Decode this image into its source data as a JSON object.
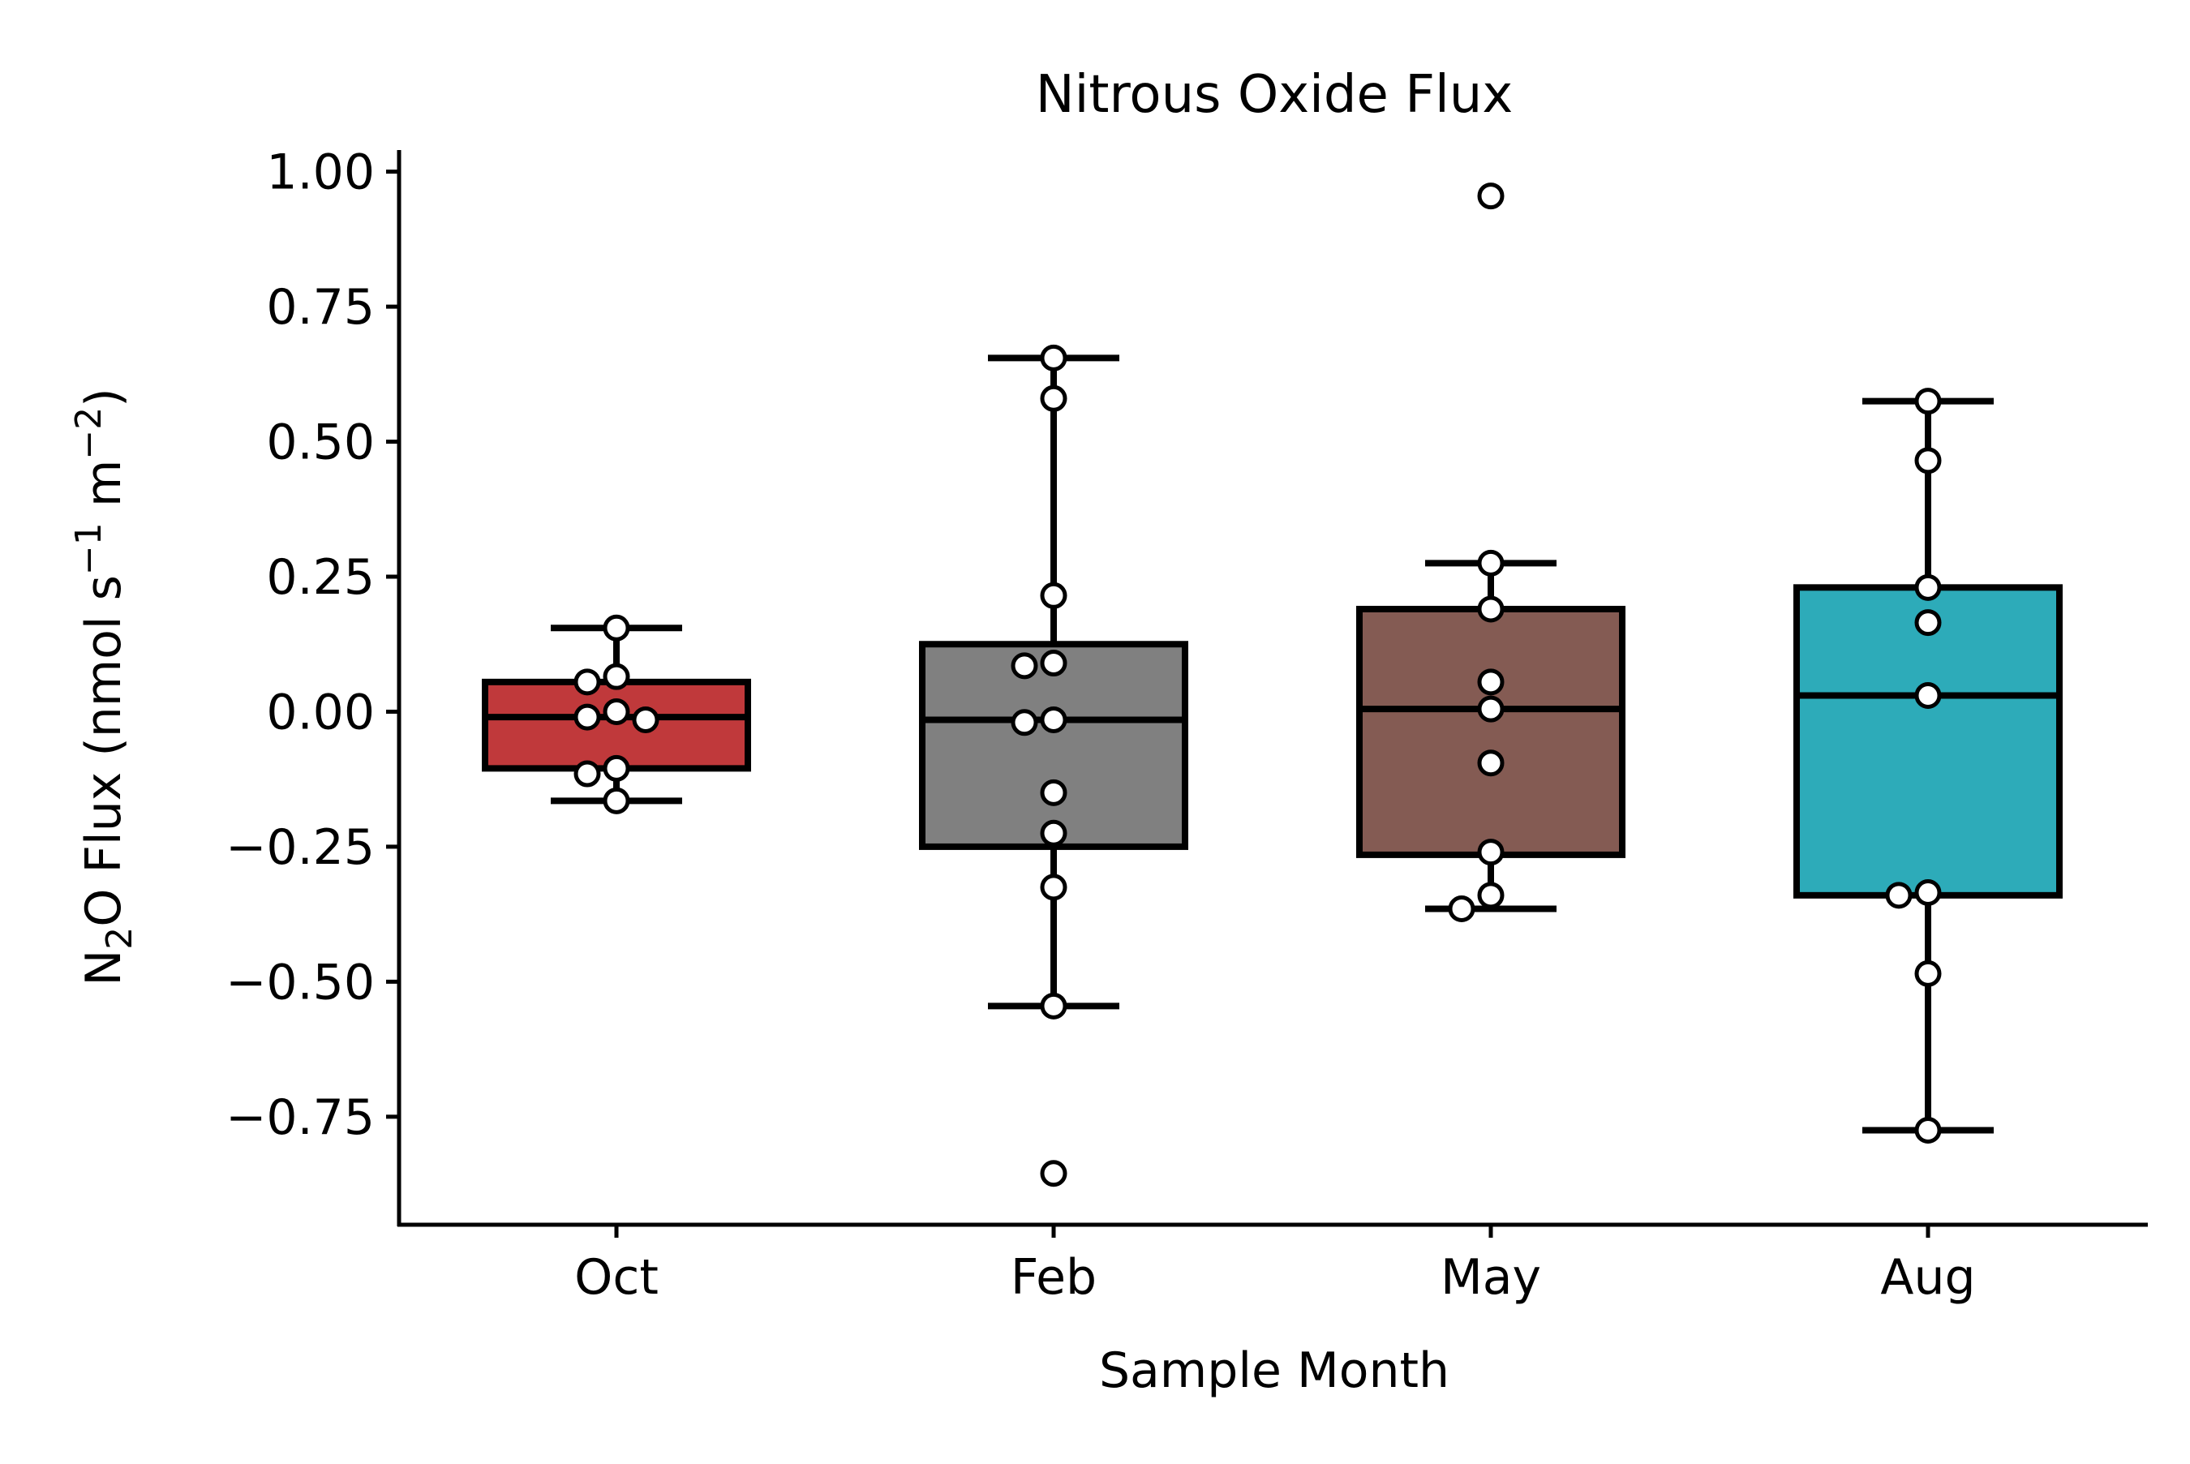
{
  "chart_data": {
    "type": "box",
    "title": "Nitrous Oxide Flux",
    "xlabel": "Sample Month",
    "ylabel": {
      "parts": [
        "N",
        "2",
        "O Flux (nmol s",
        "−1",
        " m",
        "−2",
        ")"
      ]
    },
    "categories": [
      "Oct",
      "Feb",
      "May",
      "Aug"
    ],
    "ylim": [
      -0.95,
      1.04
    ],
    "yticks": [
      {
        "value": 1.0,
        "label": "1.00"
      },
      {
        "value": 0.75,
        "label": "0.75"
      },
      {
        "value": 0.5,
        "label": "0.50"
      },
      {
        "value": 0.25,
        "label": "0.25"
      },
      {
        "value": 0.0,
        "label": "0.00"
      },
      {
        "value": -0.25,
        "label": "−0.25"
      },
      {
        "value": -0.5,
        "label": "−0.50"
      },
      {
        "value": -0.75,
        "label": "−0.75"
      }
    ],
    "boxes": [
      {
        "category": "Oct",
        "color": "#c0393b",
        "q1": -0.105,
        "median": -0.01,
        "q3": 0.055,
        "whisker_low": -0.165,
        "whisker_high": 0.155,
        "points": [
          0.155,
          0.065,
          0.055,
          0.0,
          -0.01,
          -0.015,
          -0.105,
          -0.115,
          -0.165
        ]
      },
      {
        "category": "Feb",
        "color": "#808080",
        "q1": -0.25,
        "median": -0.015,
        "q3": 0.125,
        "whisker_low": -0.545,
        "whisker_high": 0.655,
        "points": [
          0.655,
          0.58,
          0.215,
          0.09,
          0.085,
          -0.015,
          -0.02,
          -0.15,
          -0.225,
          -0.325,
          -0.545,
          -0.855
        ]
      },
      {
        "category": "May",
        "color": "#845b53",
        "q1": -0.265,
        "median": 0.005,
        "q3": 0.19,
        "whisker_low": -0.365,
        "whisker_high": 0.275,
        "points": [
          0.955,
          0.275,
          0.19,
          0.055,
          0.005,
          -0.095,
          -0.26,
          -0.34,
          -0.365
        ]
      },
      {
        "category": "Aug",
        "color": "#2dabb9",
        "q1": -0.34,
        "median": 0.03,
        "q3": 0.23,
        "whisker_low": -0.775,
        "whisker_high": 0.575,
        "points": [
          0.575,
          0.465,
          0.23,
          0.165,
          0.03,
          -0.335,
          -0.34,
          -0.485,
          -0.775
        ]
      }
    ],
    "grid": false,
    "legend": "none"
  }
}
